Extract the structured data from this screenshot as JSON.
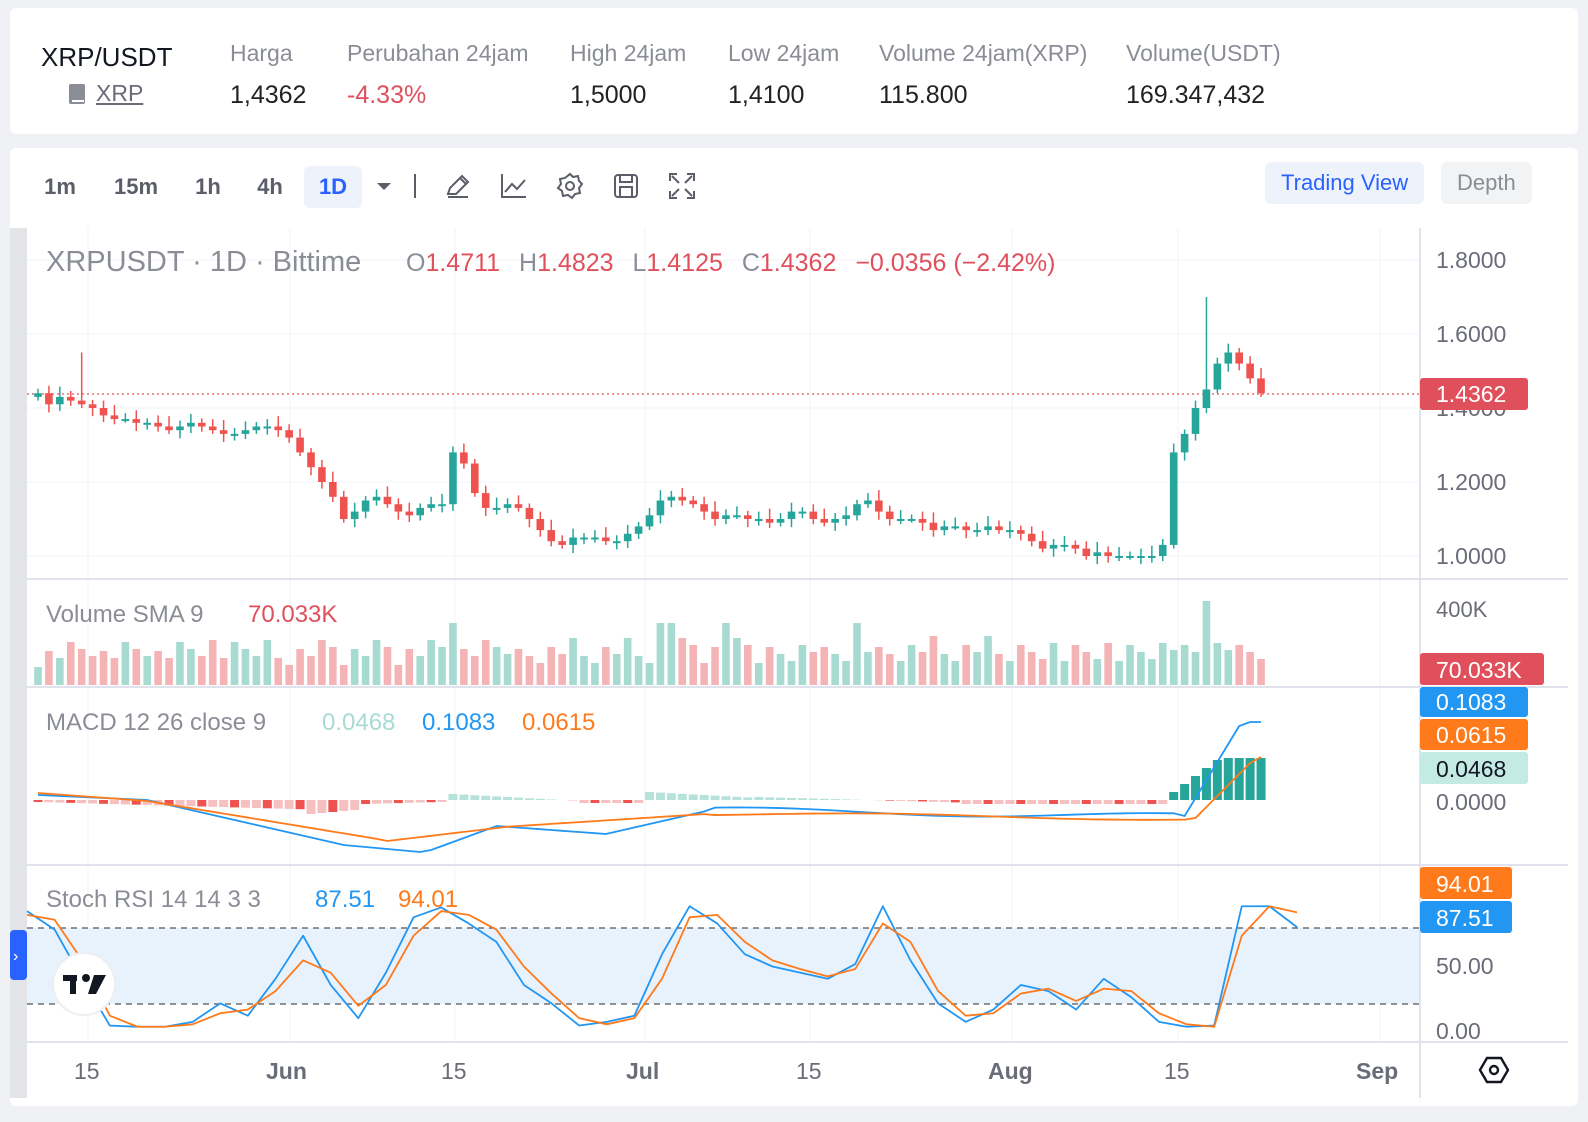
{
  "header": {
    "pair": "XRP/USDT",
    "asset": "XRP",
    "stats": [
      {
        "label": "Harga",
        "value": "1,4362",
        "negative": false
      },
      {
        "label": "Perubahan 24jam",
        "value": "-4.33%",
        "negative": true
      },
      {
        "label": "High 24jam",
        "value": "1,5000",
        "negative": false
      },
      {
        "label": "Low 24jam",
        "value": "1,4100",
        "negative": false
      },
      {
        "label": "Volume 24jam(XRP)",
        "value": "115.800",
        "negative": false
      },
      {
        "label": "Volume(USDT)",
        "value": "169.347,432",
        "negative": false
      }
    ]
  },
  "toolbar": {
    "timeframes": [
      "1m",
      "15m",
      "1h",
      "4h",
      "1D"
    ],
    "active_timeframe": "1D",
    "icons": [
      "chevron-down-icon",
      "pencil-icon",
      "indicator-icon",
      "gear-icon",
      "save-icon",
      "fullscreen-icon"
    ],
    "view_buttons": [
      "Trading View",
      "Depth"
    ],
    "active_view": "Trading View"
  },
  "legend": {
    "symbol": "XRPUSDT · 1D · Bittime",
    "o_label": "O",
    "o": "1.4711",
    "h_label": "H",
    "h": "1.4823",
    "l_label": "L",
    "l": "1.4125",
    "c_label": "C",
    "c": "1.4362",
    "change": "−0.0356 (−2.42%)",
    "volume_label": "Volume SMA 9",
    "volume_value": "70.033K",
    "macd_label": "MACD 12 26 close 9",
    "macd_hist": "0.0468",
    "macd_line": "0.1083",
    "macd_signal": "0.0615",
    "stoch_label": "Stoch RSI 14 14 3 3",
    "stoch_k": "87.51",
    "stoch_d": "94.01"
  },
  "axis": {
    "price_ticks": [
      "1.8000",
      "1.6000",
      "1.4000",
      "1.2000",
      "1.0000"
    ],
    "price_badge": "1.4362",
    "volume_tick": "400K",
    "volume_badge": "70.033K",
    "macd_badges": [
      "0.1083",
      "0.0615",
      "0.0468"
    ],
    "macd_zero": "0.0000",
    "stoch_badges": [
      "94.01",
      "87.51"
    ],
    "stoch_ticks": [
      "50.00",
      "0.00"
    ],
    "time_labels": [
      "15",
      "Jun",
      "15",
      "Jul",
      "15",
      "Aug",
      "15",
      "Sep"
    ]
  },
  "colors": {
    "up": "#26a69a",
    "down": "#ef5350",
    "macd": "#2196f3",
    "signal": "#ff7a1a",
    "brand_blue": "#2962ff",
    "neg_text": "#e0505c"
  },
  "chart_data": {
    "type": "candlestick",
    "note_x": "daily candles from May 10 to Aug 26",
    "candles_close": [
      1.44,
      1.41,
      1.43,
      1.42,
      1.41,
      1.4,
      1.38,
      1.37,
      1.37,
      1.36,
      1.36,
      1.35,
      1.34,
      1.35,
      1.36,
      1.35,
      1.34,
      1.33,
      1.33,
      1.34,
      1.35,
      1.35,
      1.34,
      1.32,
      1.28,
      1.24,
      1.2,
      1.16,
      1.1,
      1.12,
      1.15,
      1.16,
      1.14,
      1.12,
      1.11,
      1.13,
      1.14,
      1.14,
      1.28,
      1.25,
      1.17,
      1.13,
      1.13,
      1.14,
      1.13,
      1.1,
      1.07,
      1.04,
      1.03,
      1.05,
      1.05,
      1.05,
      1.04,
      1.04,
      1.06,
      1.08,
      1.11,
      1.15,
      1.16,
      1.15,
      1.14,
      1.12,
      1.1,
      1.11,
      1.11,
      1.1,
      1.1,
      1.09,
      1.1,
      1.12,
      1.12,
      1.1,
      1.09,
      1.1,
      1.11,
      1.14,
      1.15,
      1.12,
      1.1,
      1.1,
      1.1,
      1.09,
      1.07,
      1.08,
      1.08,
      1.07,
      1.07,
      1.08,
      1.07,
      1.07,
      1.06,
      1.04,
      1.02,
      1.03,
      1.03,
      1.02,
      1.0,
      1.01,
      1.0,
      1.0,
      1.0,
      1.0,
      1.0,
      1.03,
      1.28,
      1.33,
      1.4,
      1.45,
      1.52,
      1.55,
      1.52,
      1.48,
      1.44
    ]
  }
}
